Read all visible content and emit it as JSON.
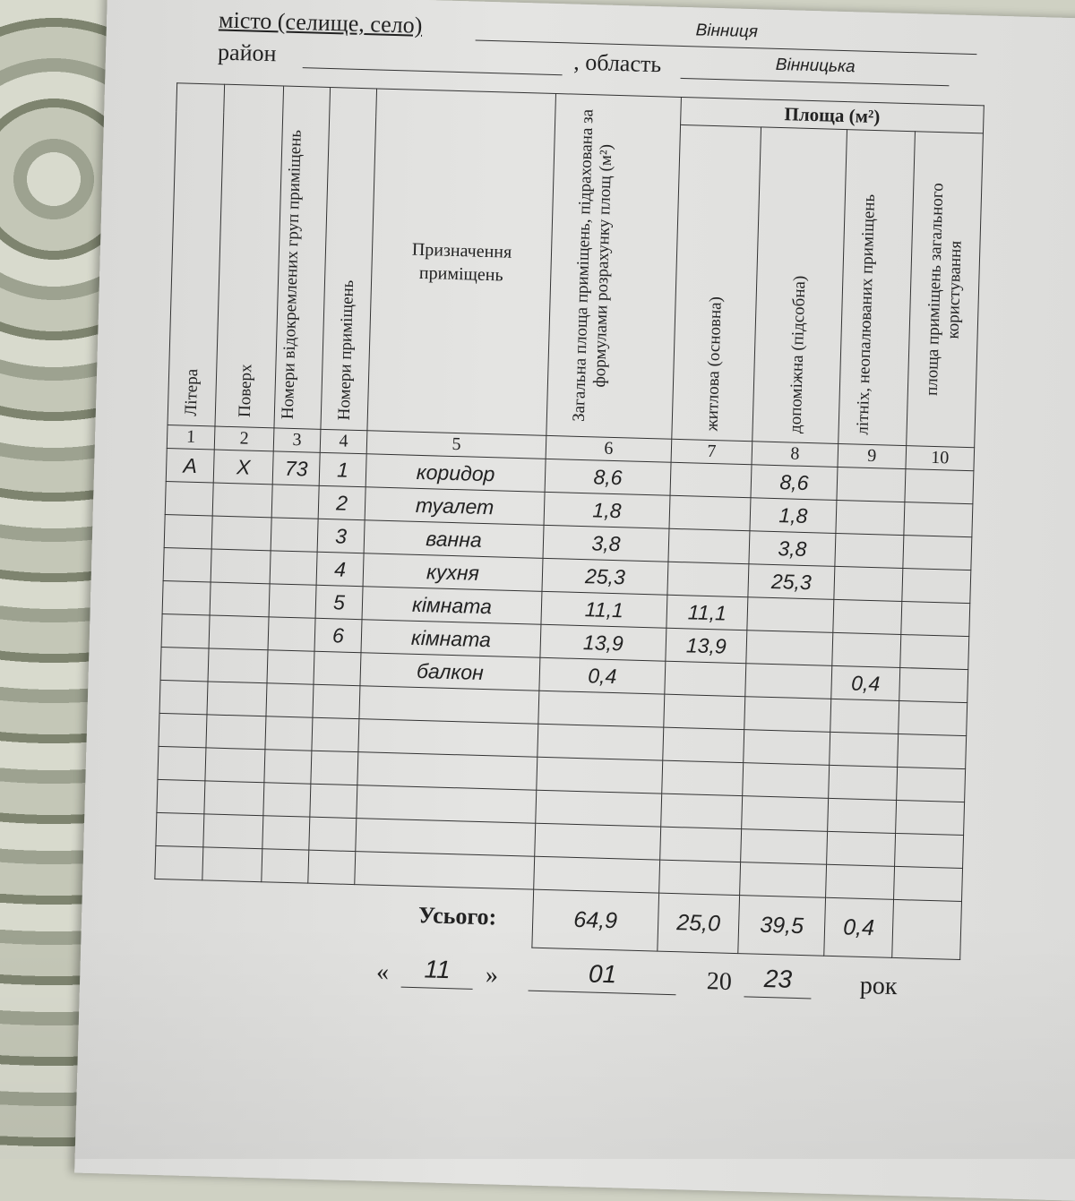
{
  "header": {
    "city_label": "місто (селище, село)",
    "city_value": "Вінниця",
    "district_label": "район",
    "district_value": "",
    "region_label": ", область",
    "region_value": "Вінницька"
  },
  "table": {
    "columns": [
      "Літера",
      "Поверх",
      "Номери відокремлених груп приміщень",
      "Номери приміщень",
      "Призначення приміщень",
      "Загальна площа приміщень, підрахована за формулами розрахунку площ (м²)",
      "житлова (основна)",
      "допоміжна (підсобна)",
      "літніх, неопалюваних приміщень",
      "площа приміщень загального користування"
    ],
    "area_group_header": "Площа (м²)",
    "column_numbers": [
      "1",
      "2",
      "3",
      "4",
      "5",
      "6",
      "7",
      "8",
      "9",
      "10"
    ],
    "rows": [
      [
        "А",
        "Х",
        "73",
        "1",
        "коридор",
        "8,6",
        "",
        "8,6",
        "",
        ""
      ],
      [
        "",
        "",
        "",
        "2",
        "туалет",
        "1,8",
        "",
        "1,8",
        "",
        ""
      ],
      [
        "",
        "",
        "",
        "3",
        "ванна",
        "3,8",
        "",
        "3,8",
        "",
        ""
      ],
      [
        "",
        "",
        "",
        "4",
        "кухня",
        "25,3",
        "",
        "25,3",
        "",
        ""
      ],
      [
        "",
        "",
        "",
        "5",
        "кімната",
        "11,1",
        "11,1",
        "",
        "",
        ""
      ],
      [
        "",
        "",
        "",
        "6",
        "кімната",
        "13,9",
        "13,9",
        "",
        "",
        ""
      ],
      [
        "",
        "",
        "",
        "",
        "балкон",
        "0,4",
        "",
        "",
        "0,4",
        ""
      ],
      [
        "",
        "",
        "",
        "",
        "",
        "",
        "",
        "",
        "",
        ""
      ],
      [
        "",
        "",
        "",
        "",
        "",
        "",
        "",
        "",
        "",
        ""
      ],
      [
        "",
        "",
        "",
        "",
        "",
        "",
        "",
        "",
        "",
        ""
      ],
      [
        "",
        "",
        "",
        "",
        "",
        "",
        "",
        "",
        "",
        ""
      ],
      [
        "",
        "",
        "",
        "",
        "",
        "",
        "",
        "",
        "",
        ""
      ],
      [
        "",
        "",
        "",
        "",
        "",
        "",
        "",
        "",
        "",
        ""
      ]
    ],
    "total_label": "Усього:",
    "totals": [
      "64,9",
      "25,0",
      "39,5",
      "0,4",
      ""
    ]
  },
  "date": {
    "open_quote": "«",
    "day": "11",
    "close_quote": "»",
    "month": "01",
    "century": "20",
    "year": "23",
    "suffix": "рок"
  }
}
